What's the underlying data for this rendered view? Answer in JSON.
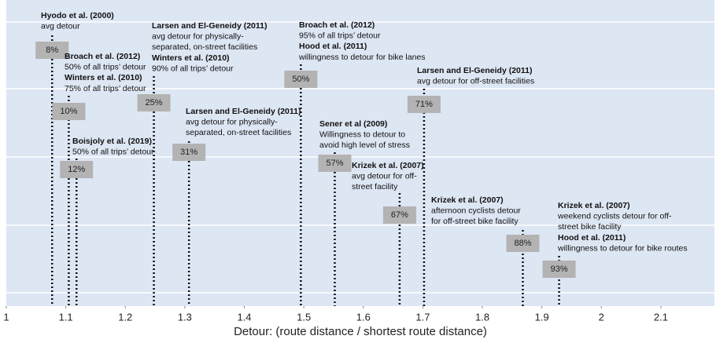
{
  "chart_data": {
    "type": "annotated_lines",
    "x_label": "Detour: (route distance / shortest route distance)",
    "xlim": [
      1,
      2.19
    ],
    "xticks": [
      1,
      1.1,
      1.2,
      1.3,
      1.4,
      1.5,
      1.6,
      1.7,
      1.8,
      1.9,
      2,
      2.1
    ],
    "x": [
      1.077,
      1.105,
      1.118,
      1.248,
      1.307,
      1.495,
      1.552,
      1.661,
      1.702,
      1.868,
      1.929
    ],
    "values": [
      8,
      10,
      12,
      25,
      31,
      50,
      57,
      67,
      71,
      88,
      93
    ],
    "value_labels": [
      "8%",
      "10%",
      "12%",
      "25%",
      "31%",
      "50%",
      "57%",
      "67%",
      "71%",
      "88%",
      "93%"
    ],
    "box_color": "#b3b3b3",
    "notes": [
      [
        {
          "source": "Hyodo et al. (2000)",
          "lines": [
            "avg detour"
          ]
        }
      ],
      [
        {
          "source": "Broach et al. (2012)",
          "lines": [
            "50% of all trips’ detour"
          ]
        },
        {
          "source": "Winters et al. (2010)",
          "lines": [
            "75% of all trips’ detour"
          ]
        }
      ],
      [
        {
          "source": "Boisjoly et al. (2019)",
          "lines": [
            "50% of all trips’ detour"
          ]
        }
      ],
      [
        {
          "source": "Larsen and El-Geneidy (2011)",
          "lines": [
            "avg detour for physically-",
            "separated, on-street facilities"
          ]
        },
        {
          "source": "Winters et al. (2010)",
          "lines": [
            "90% of all trips’ detour"
          ]
        }
      ],
      [
        {
          "source": "Larsen and El-Geneidy (2011)",
          "lines": [
            "avg detour for physically-",
            "separated, on-street facilities"
          ]
        }
      ],
      [
        {
          "source": "Broach et al. (2012)",
          "lines": [
            "95% of all trips’ detour"
          ]
        },
        {
          "source": "Hood et al.  (2011)",
          "lines": [
            "willingness to detour for bike lanes"
          ]
        }
      ],
      [
        {
          "source": "Sener et al (2009)",
          "lines": [
            "Willingness to detour to",
            "avoid high level of stress"
          ]
        }
      ],
      [
        {
          "source": "Krizek et al. (2007)",
          "lines": [
            "avg detour for off-",
            "street facility"
          ]
        }
      ],
      [
        {
          "source": "Larsen and El-Geneidy (2011)",
          "lines": [
            "avg detour for off-street facilities"
          ]
        }
      ],
      [
        {
          "source": "Krizek et al. (2007)",
          "lines": [
            "afternoon cyclists detour",
            "for off-street bike facility"
          ]
        }
      ],
      [
        {
          "source": "Krizek et al. (2007)",
          "lines": [
            "weekend cyclists detour for off-",
            "street bike facility"
          ]
        },
        {
          "source": "Hood et al.  (2011)",
          "lines": [
            "willingness to detour for bike routes"
          ]
        }
      ]
    ]
  }
}
